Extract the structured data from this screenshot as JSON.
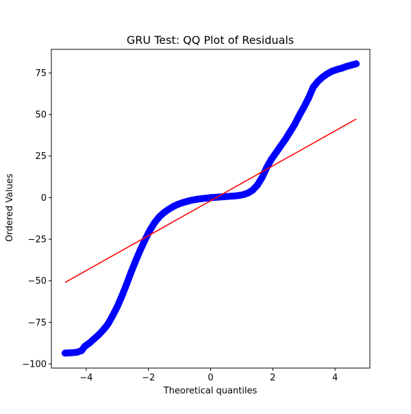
{
  "chart_data": {
    "type": "scatter",
    "title": "GRU Test: QQ Plot of Residuals",
    "xlabel": "Theoretical quantiles",
    "ylabel": "Ordered Values",
    "xlim": [
      -5.12,
      5.12
    ],
    "ylim": [
      -102.5,
      89.2
    ],
    "xticks": [
      -4,
      -2,
      0,
      2,
      4
    ],
    "xtick_labels": [
      "−4",
      "−2",
      "0",
      "2",
      "4"
    ],
    "yticks": [
      -100,
      -75,
      -50,
      -25,
      0,
      25,
      50,
      75
    ],
    "ytick_labels": [
      "−100",
      "−75",
      "−50",
      "−25",
      "0",
      "25",
      "50",
      "75"
    ],
    "grid": false,
    "series": [
      {
        "kind": "points",
        "color": "#0000ff",
        "x": [
          -4.68,
          -4.48,
          -4.3,
          -4.15,
          -4.05,
          -3.9,
          -3.75,
          -3.6,
          -3.45,
          -3.3,
          -3.15,
          -3.0,
          -2.85,
          -2.7,
          -2.55,
          -2.4,
          -2.25,
          -2.1,
          -1.95,
          -1.8,
          -1.65,
          -1.5,
          -1.35,
          -1.2,
          -1.05,
          -0.9,
          -0.75,
          -0.6,
          -0.45,
          -0.3,
          -0.15,
          0.0,
          0.15,
          0.3,
          0.45,
          0.6,
          0.75,
          0.9,
          1.05,
          1.2,
          1.35,
          1.5,
          1.65,
          1.8,
          1.95,
          2.1,
          2.25,
          2.4,
          2.55,
          2.7,
          2.85,
          3.0,
          3.15,
          3.3,
          3.45,
          3.6,
          3.75,
          3.9,
          4.05,
          4.2,
          4.35,
          4.5,
          4.68
        ],
        "y": [
          -93.5,
          -93.3,
          -93.0,
          -92.0,
          -89.5,
          -87.5,
          -85.0,
          -82.5,
          -79.5,
          -76.0,
          -71.0,
          -65.5,
          -59.0,
          -52.0,
          -44.5,
          -37.5,
          -31.0,
          -25.0,
          -19.5,
          -15.0,
          -11.5,
          -9.0,
          -7.0,
          -5.3,
          -4.0,
          -3.0,
          -2.2,
          -1.5,
          -1.0,
          -0.6,
          -0.3,
          0.0,
          0.2,
          0.4,
          0.6,
          0.8,
          1.0,
          1.3,
          1.8,
          2.8,
          4.5,
          7.5,
          12.0,
          18.0,
          23.0,
          27.0,
          31.0,
          35.0,
          39.5,
          44.0,
          49.5,
          54.5,
          60.0,
          66.5,
          70.0,
          72.5,
          74.5,
          76.0,
          77.0,
          77.8,
          78.8,
          79.6,
          80.5
        ]
      },
      {
        "kind": "fit-line",
        "color": "#ff0000",
        "x": [
          -4.68,
          4.68
        ],
        "y": [
          -51.0,
          47.3
        ]
      }
    ]
  }
}
